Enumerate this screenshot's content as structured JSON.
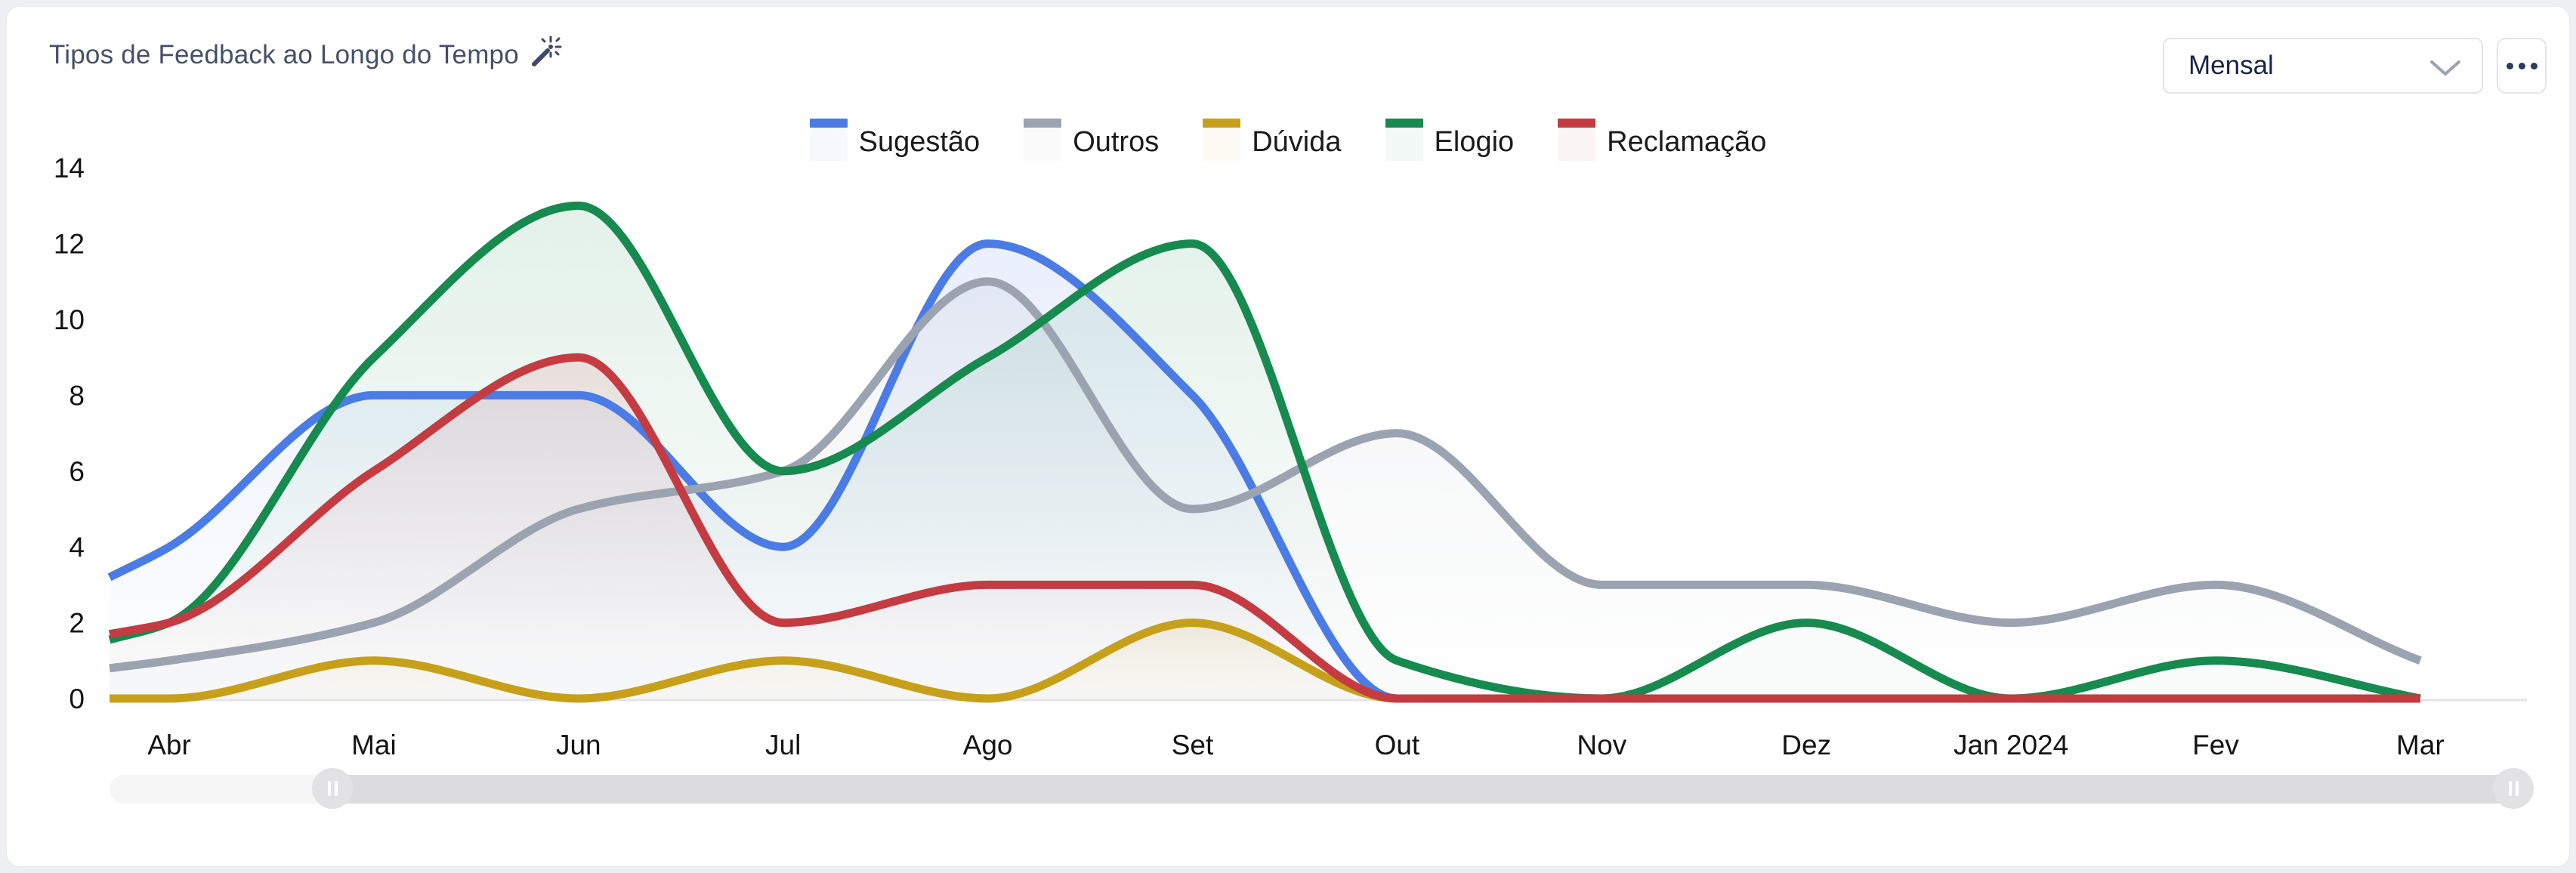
{
  "header": {
    "title": "Tipos de Feedback ao Longo do Tempo",
    "title_icon": "magic-wand-sparkle-icon",
    "period_select": {
      "value": "Mensal",
      "chevron_icon": "chevron-down-icon"
    },
    "menu_button": {
      "icon": "ellipsis-icon"
    }
  },
  "colors": {
    "title": "#44506a",
    "axis_text": "#141416",
    "axis_line": "#e4e4e7"
  },
  "chart_data": {
    "type": "area",
    "title": "Tipos de Feedback ao Longo do Tempo",
    "categories": [
      "Abr",
      "Mai",
      "Jun",
      "Jul",
      "Ago",
      "Set",
      "Out",
      "Nov",
      "Dez",
      "Jan 2024",
      "Fev",
      "Mar"
    ],
    "series": [
      {
        "name": "Sugestão",
        "color": "#4b7be5",
        "edge_value": 3.2,
        "values": [
          4,
          8,
          8,
          4,
          12,
          8,
          0,
          0,
          0,
          0,
          0,
          0
        ]
      },
      {
        "name": "Outros",
        "color": "#9ba3b0",
        "edge_value": 0.8,
        "values": [
          1,
          2,
          5,
          6,
          11,
          5,
          7,
          3,
          3,
          2,
          3,
          1
        ]
      },
      {
        "name": "Dúvida",
        "color": "#c7a01b",
        "edge_value": 0,
        "values": [
          0,
          1,
          0,
          1,
          0,
          2,
          0,
          0,
          0,
          0,
          0,
          0
        ]
      },
      {
        "name": "Elogio",
        "color": "#178a4f",
        "edge_value": 1.55,
        "values": [
          2,
          9,
          13,
          6,
          9,
          12,
          1,
          0,
          2,
          0,
          1,
          0
        ]
      },
      {
        "name": "Reclamação",
        "color": "#c43b42",
        "edge_value": 1.7,
        "values": [
          2,
          6,
          9,
          2,
          3,
          3,
          0,
          0,
          0,
          0,
          0,
          0
        ]
      }
    ],
    "ylim": [
      0,
      14
    ],
    "yticks": [
      0,
      2,
      4,
      6,
      8,
      10,
      12,
      14
    ],
    "grid": false,
    "legend_position": "top",
    "interpolation": "monotone-cubic",
    "notes": "curves clipped at left plot edge before Abr; data lines end at Mar"
  },
  "scrollbar": {
    "left_handle_icon": "drag-handle-icon",
    "right_handle_icon": "drag-handle-icon"
  }
}
